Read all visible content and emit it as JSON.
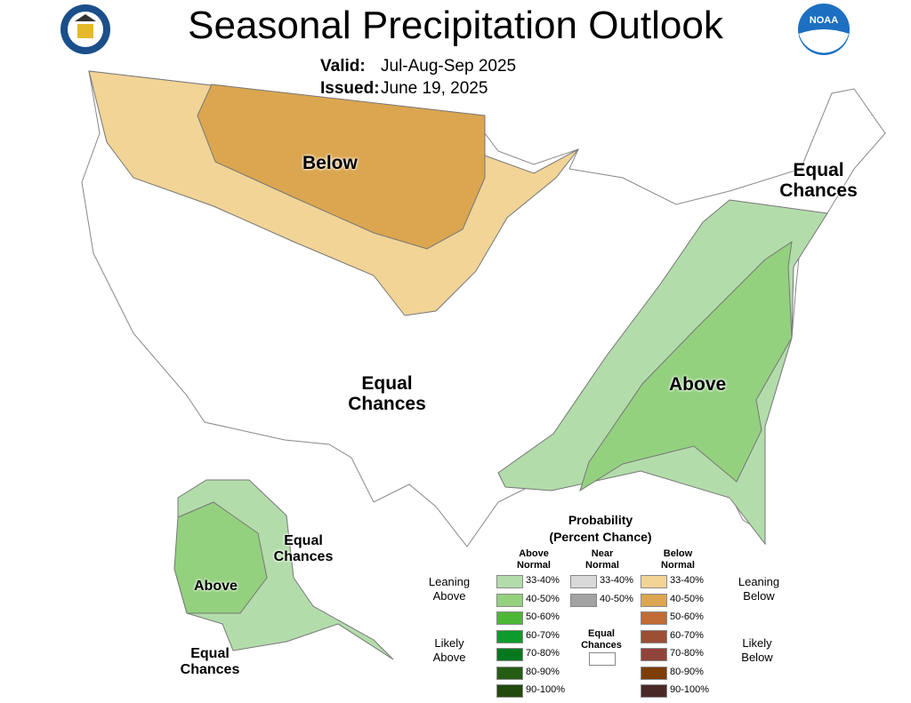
{
  "header": {
    "title": "Seasonal Precipitation Outlook",
    "valid_label": "Valid:",
    "valid_value": "Jul-Aug-Sep 2025",
    "issued_label": "Issued:",
    "issued_value": "June 19, 2025"
  },
  "logos": {
    "left": "department-of-commerce-seal",
    "right": "noaa-logo",
    "right_text": "NOAA"
  },
  "map_labels": {
    "below": "Below",
    "equal_ne": "Equal Chances",
    "equal_center": "Equal Chances",
    "above_se": "Above",
    "alaska_above": "Above",
    "alaska_equal_e": "Equal Chances",
    "alaska_equal_s": "Equal Chances"
  },
  "legend": {
    "title": "Probability",
    "subtitle": "(Percent Chance)",
    "above_header": "Above Normal",
    "near_header": "Near Normal",
    "below_header": "Below Normal",
    "leaning_above": "Leaning Above",
    "likely_above": "Likely Above",
    "leaning_below": "Leaning Below",
    "likely_below": "Likely Below",
    "equal_chances": "Equal Chances",
    "above": [
      {
        "range": "33-40%",
        "color": "#b3dcab"
      },
      {
        "range": "40-50%",
        "color": "#93d17f"
      },
      {
        "range": "50-60%",
        "color": "#4db838"
      },
      {
        "range": "60-70%",
        "color": "#0d9b2d"
      },
      {
        "range": "70-80%",
        "color": "#06791f"
      },
      {
        "range": "80-90%",
        "color": "#265d15"
      },
      {
        "range": "90-100%",
        "color": "#234a0d"
      }
    ],
    "near": [
      {
        "range": "33-40%",
        "color": "#d9d9d9"
      },
      {
        "range": "40-50%",
        "color": "#a3a3a3"
      }
    ],
    "below": [
      {
        "range": "33-40%",
        "color": "#f1d496"
      },
      {
        "range": "40-50%",
        "color": "#dba64f"
      },
      {
        "range": "50-60%",
        "color": "#c16c34"
      },
      {
        "range": "60-70%",
        "color": "#9b4f33"
      },
      {
        "range": "70-80%",
        "color": "#92433a"
      },
      {
        "range": "80-90%",
        "color": "#7c3d06"
      },
      {
        "range": "90-100%",
        "color": "#4a2a26"
      }
    ],
    "equal_color": "#ffffff"
  }
}
